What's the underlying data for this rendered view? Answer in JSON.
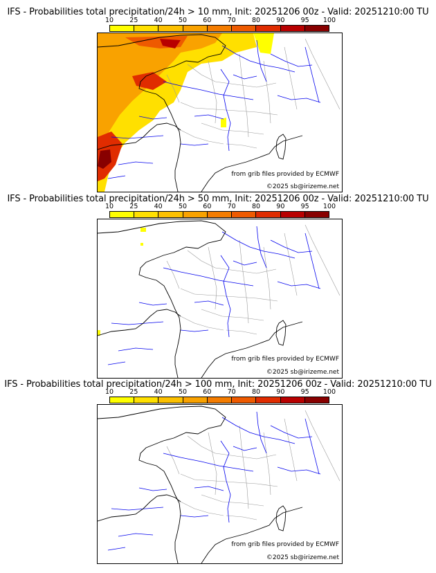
{
  "panels": [
    {
      "title": "IFS - Probabilities total precipitation/24h > 10 mm, Init: 20251206 00z - Valid: 20251210:00 TU",
      "credit1": "from grib files provided by ECMWF",
      "credit2": "©2025 sb@irizeme.net"
    },
    {
      "title": "IFS - Probabilities total precipitation/24h > 50 mm, Init: 20251206 00z - Valid: 20251210:00 TU",
      "credit1": "from grib files provided by ECMWF",
      "credit2": "©2025 sb@irizeme.net"
    },
    {
      "title": "IFS - Probabilities total precipitation/24h > 100 mm, Init: 20251206 00z - Valid: 20251210:00 TU",
      "credit1": "from grib files provided by ECMWF",
      "credit2": "©2025 sb@irizeme.net"
    }
  ],
  "colorbar": {
    "ticks": [
      "10",
      "25",
      "40",
      "50",
      "60",
      "70",
      "80",
      "90",
      "95",
      "100"
    ],
    "colors": [
      "#ffff00",
      "#ffe000",
      "#fcc000",
      "#f9a200",
      "#f47c00",
      "#ee5a00",
      "#e02c00",
      "#b80000",
      "#880000",
      "#5a0000"
    ]
  },
  "map_colors": {
    "coast": "#000000",
    "rivers": "#0000ee",
    "borders": "#999999"
  }
}
